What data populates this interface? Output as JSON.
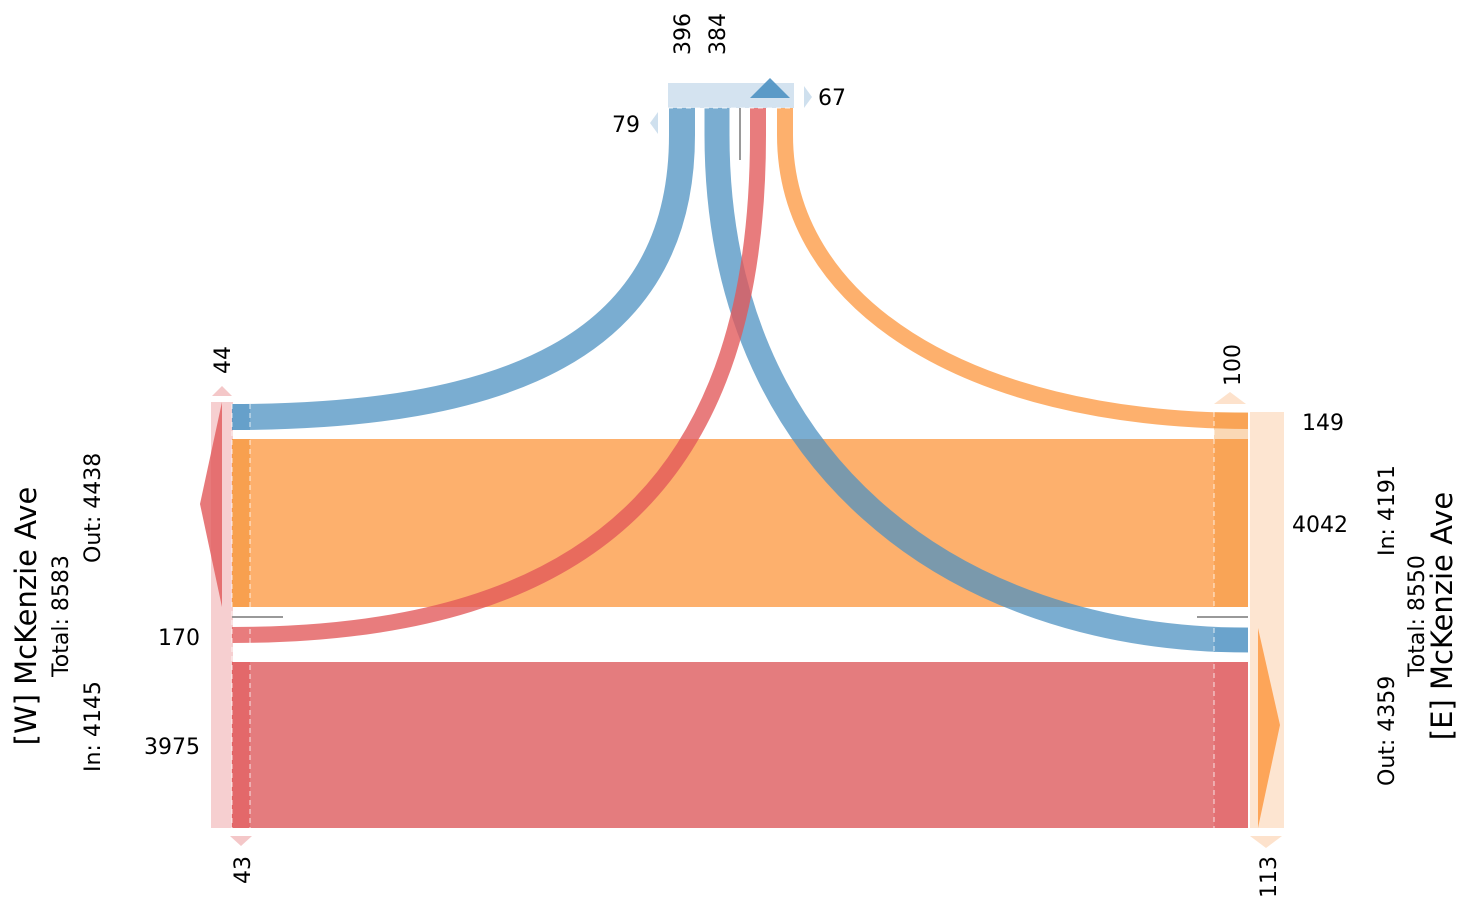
{
  "west": {
    "name": "[W] McKenzie Ave",
    "total": "Total: 8583",
    "in": "In: 4145",
    "out": "Out: 4438",
    "uturn_top": "44",
    "uturn_bottom": "43",
    "flow_left": "170",
    "flow_through": "3975"
  },
  "east": {
    "name": "[E] McKenzie Ave",
    "total": "Total: 8550",
    "in": "In: 4191",
    "out": "Out: 4359",
    "uturn_top": "100",
    "uturn_bottom": "113",
    "flow_right": "149",
    "flow_through": "4042"
  },
  "north": {
    "flow_left": "396",
    "flow_right": "384",
    "uturn_left": "79",
    "uturn_right": "67"
  },
  "colors": {
    "west_origin": "#e15759",
    "east_origin": "#f28e2b",
    "north_origin": "#4e91c2",
    "west_pale": "#f4c7c8",
    "east_pale": "#fde2cc",
    "north_pale": "#cfe0ee"
  }
}
